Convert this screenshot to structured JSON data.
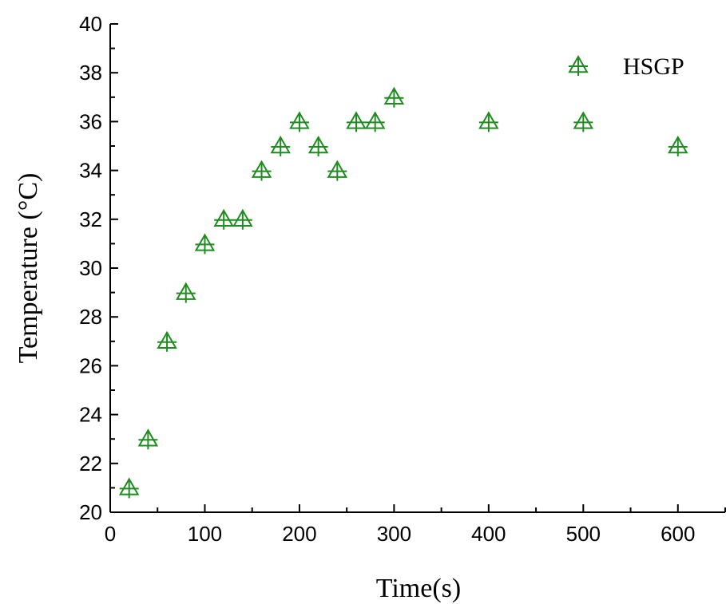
{
  "chart_data": {
    "type": "scatter",
    "title": "",
    "xlabel": "Time(s)",
    "ylabel": "Temperature (°C)",
    "xlim": [
      0,
      650
    ],
    "ylim": [
      20,
      40
    ],
    "x_ticks": [
      0,
      100,
      200,
      300,
      400,
      500,
      600
    ],
    "y_ticks": [
      20,
      22,
      24,
      26,
      28,
      30,
      32,
      34,
      36,
      38,
      40
    ],
    "grid": false,
    "legend_position": "top-right",
    "series": [
      {
        "name": "HSGP",
        "marker": "triangle-up-cross",
        "color": "#1f8c1f",
        "x": [
          20,
          40,
          60,
          80,
          100,
          120,
          140,
          160,
          180,
          200,
          220,
          240,
          260,
          280,
          300,
          400,
          500,
          600
        ],
        "y": [
          21,
          23,
          27,
          29,
          31,
          32,
          32,
          34,
          35,
          36,
          35,
          34,
          36,
          36,
          37,
          36,
          36,
          35
        ]
      }
    ]
  }
}
